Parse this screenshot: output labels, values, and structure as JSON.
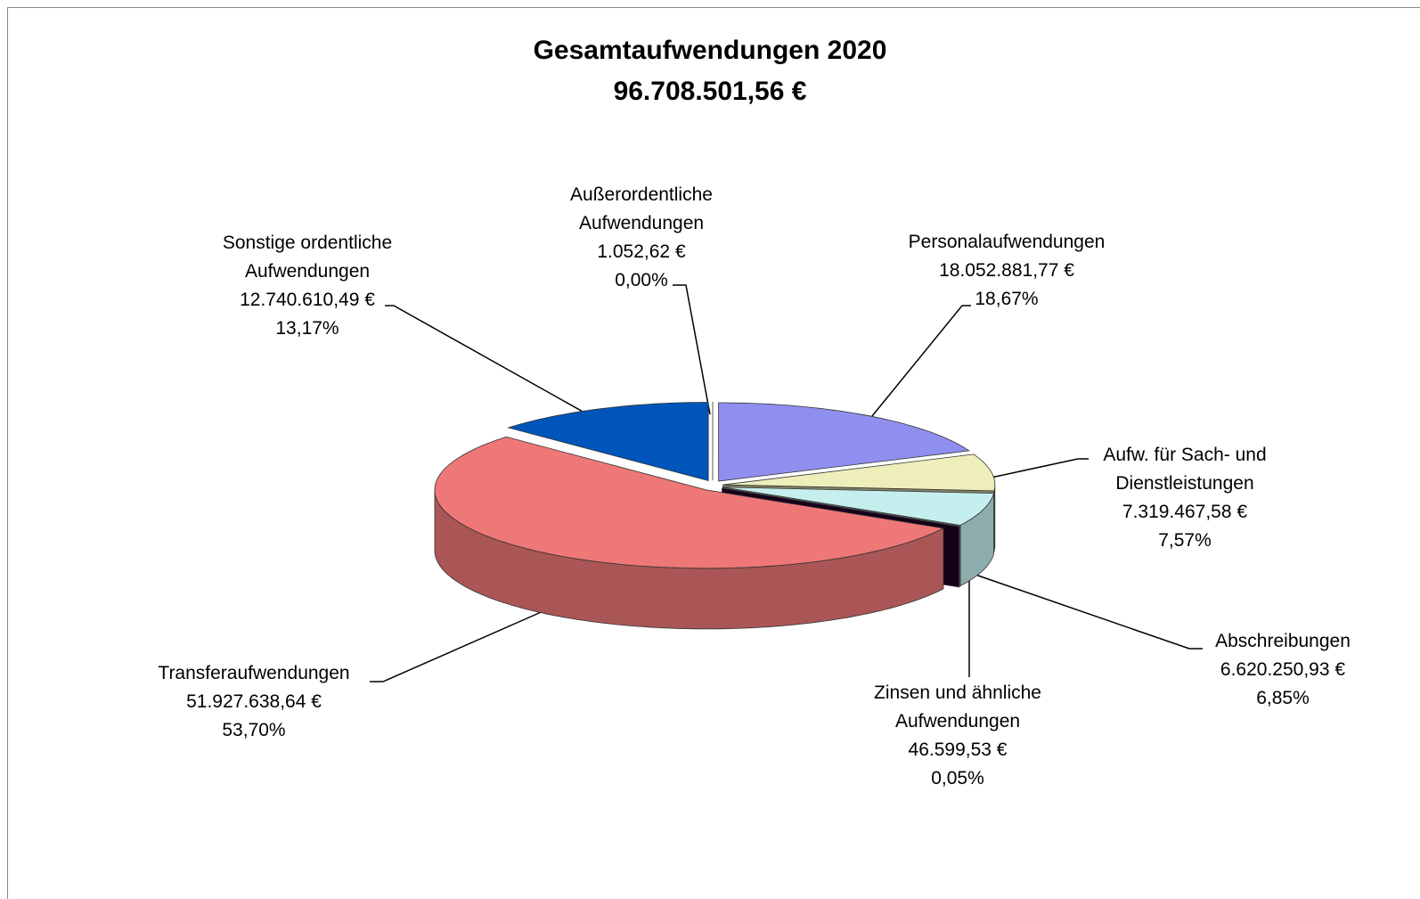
{
  "chart_data": {
    "type": "pie3d",
    "title": "Gesamtaufwendungen 2020",
    "subtitle": "96.708.501,56 €",
    "categories": [
      "Personalaufwendungen",
      "Aufw. für Sach- und Dienstleistungen",
      "Abschreibungen",
      "Zinsen und ähnliche Aufwendungen",
      "Transferaufwendungen",
      "Sonstige ordentliche Aufwendungen",
      "Außerordentliche Aufwendungen"
    ],
    "values": [
      18052881.77,
      7319467.58,
      6620250.93,
      46599.53,
      51927638.64,
      12740610.49,
      1052.62
    ],
    "value_labels": [
      "18.052.881,77 €",
      "7.319.467,58 €",
      "6.620.250,93 €",
      "46.599,53 €",
      "51.927.638,64 €",
      "12.740.610,49 €",
      "1.052,62 €"
    ],
    "percents": [
      18.67,
      7.57,
      6.85,
      0.05,
      53.7,
      13.17,
      0.0
    ],
    "percent_labels": [
      "18,67%",
      "7,57%",
      "6,85%",
      "0,05%",
      "53,70%",
      "13,17%",
      "0,00%"
    ],
    "colors": [
      "#8f8fef",
      "#eeeebb",
      "#c5efef",
      "#2a0030",
      "#ee7777",
      "#0055bb",
      "#ffffff"
    ]
  }
}
